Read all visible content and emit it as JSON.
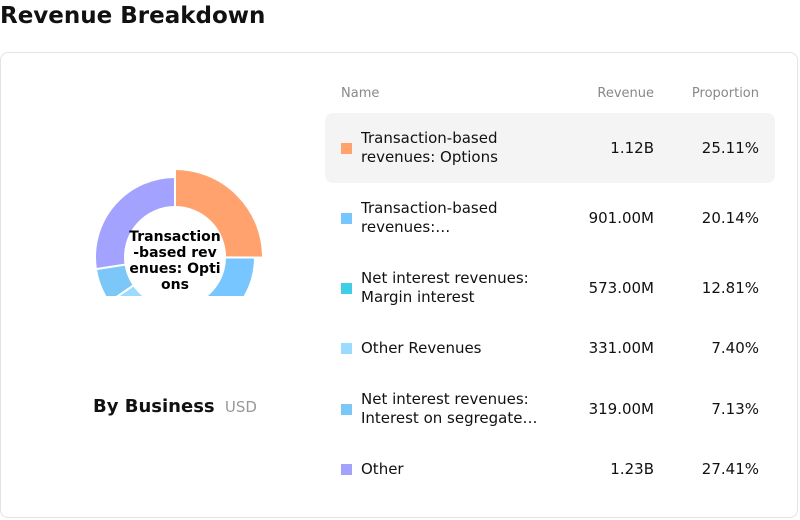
{
  "page_title": "Revenue Breakdown",
  "chart_title": "By Business",
  "chart_unit": "USD",
  "center_label": "Transaction-based revenues: Options",
  "table": {
    "headers": {
      "name": "Name",
      "revenue": "Revenue",
      "proportion": "Proportion"
    },
    "rows": [
      {
        "name": "Transaction-based revenues: Options",
        "revenue": "1.12B",
        "proportion": "25.11%",
        "color": "#FFA26E",
        "active": true
      },
      {
        "name": "Transaction-based revenues:…",
        "revenue": "901.00M",
        "proportion": "20.14%",
        "color": "#77C6FF",
        "active": false
      },
      {
        "name": "Net interest revenues: Margin interest",
        "revenue": "573.00M",
        "proportion": "12.81%",
        "color": "#3ECFE6",
        "active": false
      },
      {
        "name": "Other Revenues",
        "revenue": "331.00M",
        "proportion": "7.40%",
        "color": "#9ADBFF",
        "active": false
      },
      {
        "name": "Net interest revenues: Interest on segregate…",
        "revenue": "319.00M",
        "proportion": "7.13%",
        "color": "#7BC8F8",
        "active": false
      },
      {
        "name": "Other",
        "revenue": "1.23B",
        "proportion": "27.41%",
        "color": "#A3A3FF",
        "active": false
      }
    ]
  },
  "chart_data": {
    "type": "pie",
    "variant": "donut",
    "title": "By Business",
    "unit": "USD",
    "categories": [
      "Transaction-based revenues: Options",
      "Transaction-based revenues:…",
      "Net interest revenues: Margin interest",
      "Other Revenues",
      "Net interest revenues: Interest on segregate…",
      "Other"
    ],
    "values": [
      25.11,
      20.14,
      12.81,
      7.4,
      7.13,
      27.41
    ],
    "revenues": [
      "1.12B",
      "901.00M",
      "573.00M",
      "331.00M",
      "319.00M",
      "1.23B"
    ],
    "colors": [
      "#FFA26E",
      "#77C6FF",
      "#3ECFE6",
      "#9ADBFF",
      "#7BC8F8",
      "#A3A3FF"
    ],
    "highlighted": 0
  }
}
